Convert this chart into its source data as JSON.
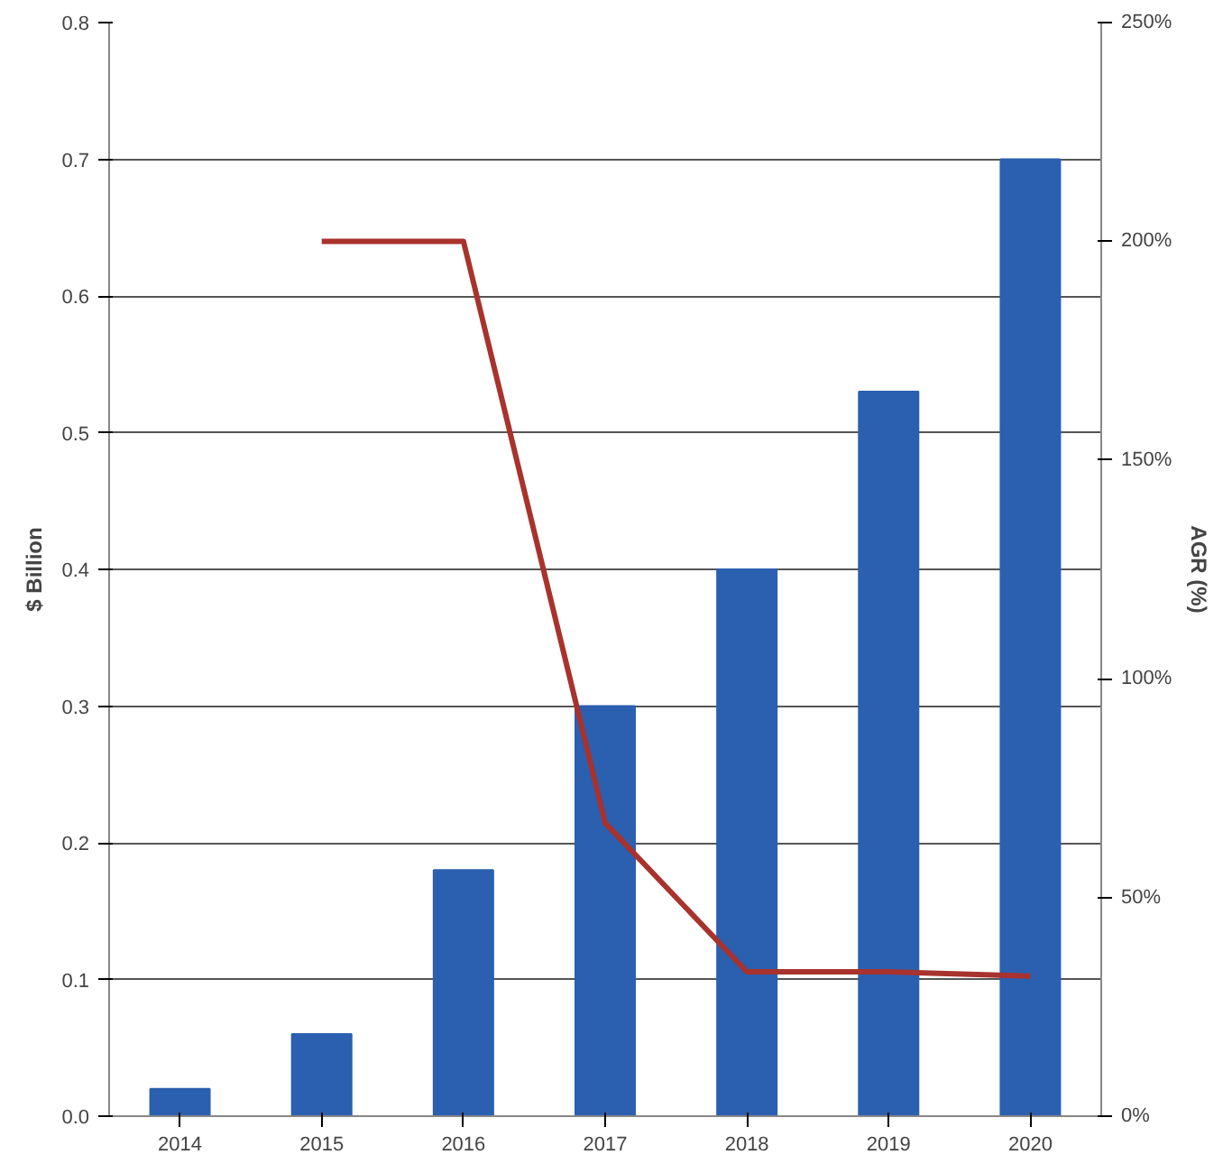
{
  "chart_data": {
    "type": "bar",
    "ylabel": "$ Billion",
    "y2label": "AGR (%)",
    "categories": [
      "2014",
      "2015",
      "2016",
      "2017",
      "2018",
      "2019",
      "2020"
    ],
    "series": [
      {
        "color": "#2b5fb0",
        "values": [
          0.02,
          0.06,
          0.18,
          0.3,
          0.4,
          0.53,
          0.7
        ]
      },
      {
        "type": "line",
        "axis": "y2",
        "color": "#a8322d",
        "values": [
          null,
          200,
          200,
          67,
          33,
          33,
          32
        ]
      }
    ],
    "ylim": [
      0,
      0.8
    ],
    "yticks": [
      {
        "value": 0,
        "label": "0.0"
      },
      0.1,
      0.2,
      0.3,
      0.4,
      0.5,
      0.6,
      0.7,
      0.8
    ],
    "y2lim": [
      0,
      250
    ],
    "y2ticks": [
      {
        "value": 0,
        "label": "0%"
      },
      {
        "value": 50,
        "label": "50%"
      },
      {
        "value": 100,
        "label": "100%"
      },
      {
        "value": 150,
        "label": "150%"
      },
      {
        "value": 200,
        "label": "200%"
      },
      {
        "value": 250,
        "label": "250%"
      }
    ],
    "grid": "y"
  }
}
